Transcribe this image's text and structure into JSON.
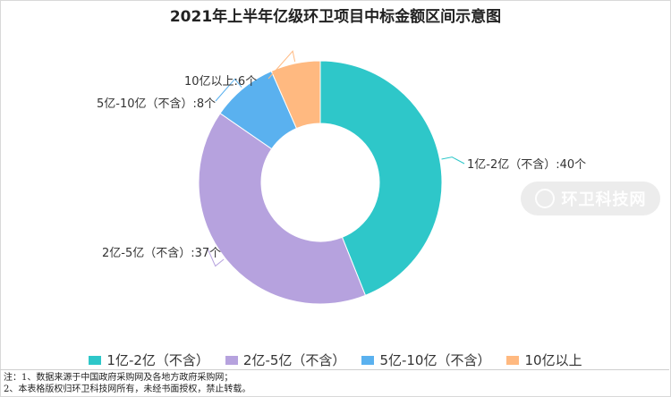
{
  "watermark": {
    "brand_text": "环卫科技网",
    "icon": "leaf-drop-icon"
  },
  "notes": [
    "注：1、数据来源于中国政府采购网及各地方政府采购网；",
    "2、本表格版权归环卫科技网所有，未经书面授权，禁止转载。"
  ],
  "chart_data": {
    "type": "pie",
    "title": "2021年上半年亿级环卫项目中标金额区间示意图",
    "donut": true,
    "legend_placement": "bottom",
    "slices": [
      {
        "name": "1亿-2亿（不含）",
        "value": 40,
        "color": "#2ec7c9",
        "label": "1亿-2亿（不含）:40个",
        "legend": "1亿-2亿（不含）"
      },
      {
        "name": "2亿-5亿（不含）",
        "value": 37,
        "color": "#b6a2de",
        "label": "2亿-5亿（不含）:37个",
        "legend": "2亿-5亿（不含）"
      },
      {
        "name": "5亿-10亿（不含）",
        "value": 8,
        "color": "#5ab1ef",
        "label": "5亿-10亿（不含）:8个",
        "legend": "5亿-10亿（不含）"
      },
      {
        "name": "10亿以上",
        "value": 6,
        "color": "#ffb980",
        "label": "10亿以上:6个",
        "legend": "10亿以上"
      }
    ]
  }
}
